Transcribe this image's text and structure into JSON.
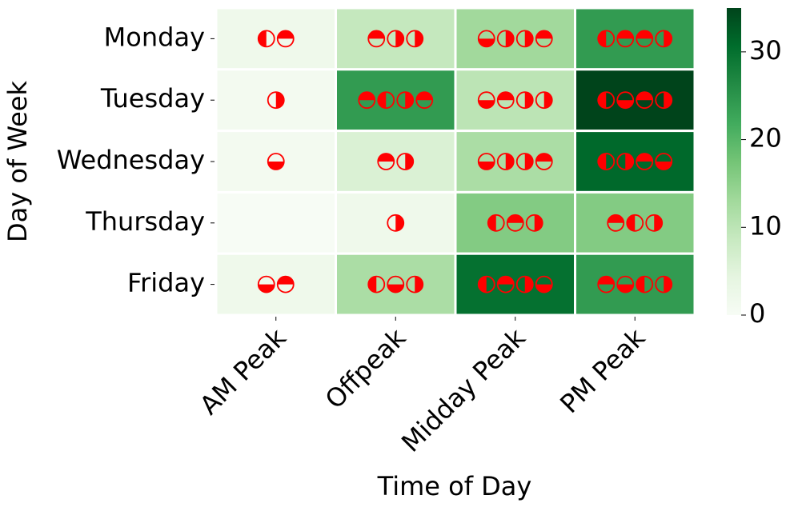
{
  "chart_data": {
    "type": "heatmap",
    "x_label": "Time of Day",
    "y_label": "Day of Week",
    "x_categories": [
      "AM Peak",
      "Offpeak",
      "Midday Peak",
      "PM Peak"
    ],
    "y_categories": [
      "Monday",
      "Tuesday",
      "Wednesday",
      "Thursday",
      "Friday"
    ],
    "values": [
      [
        2,
        9,
        13,
        24
      ],
      [
        1,
        24,
        10,
        35
      ],
      [
        1,
        6,
        12,
        31
      ],
      [
        0,
        2,
        16,
        16
      ],
      [
        2,
        12,
        30,
        24
      ]
    ],
    "colormap": "Greens",
    "marker_color": "#ff0000",
    "markers": [
      [
        [
          "left",
          "top"
        ],
        [
          "top",
          "right",
          "right"
        ],
        [
          "bottom",
          "right",
          "right",
          "top"
        ],
        [
          "left",
          "top",
          "top",
          "right"
        ]
      ],
      [
        [
          "right"
        ],
        [
          "top",
          "left",
          "right",
          "top"
        ],
        [
          "bottom",
          "top",
          "right",
          "right"
        ],
        [
          "left",
          "bottom",
          "top",
          "right"
        ]
      ],
      [
        [
          "bottom"
        ],
        [
          "top",
          "right"
        ],
        [
          "bottom",
          "right",
          "right",
          "top"
        ],
        [
          "left",
          "right",
          "top",
          "bottom"
        ]
      ],
      [
        [],
        [
          "right"
        ],
        [
          "left",
          "top",
          "right"
        ],
        [
          "top",
          "left",
          "right"
        ]
      ],
      [
        [
          "bottom",
          "top"
        ],
        [
          "left",
          "bottom",
          "right"
        ],
        [
          "left",
          "top",
          "right",
          "bottom"
        ],
        [
          "top",
          "bottom",
          "left",
          "right"
        ]
      ]
    ],
    "ylim": [
      0,
      35
    ],
    "yticks": [
      0,
      10,
      20,
      30
    ]
  }
}
